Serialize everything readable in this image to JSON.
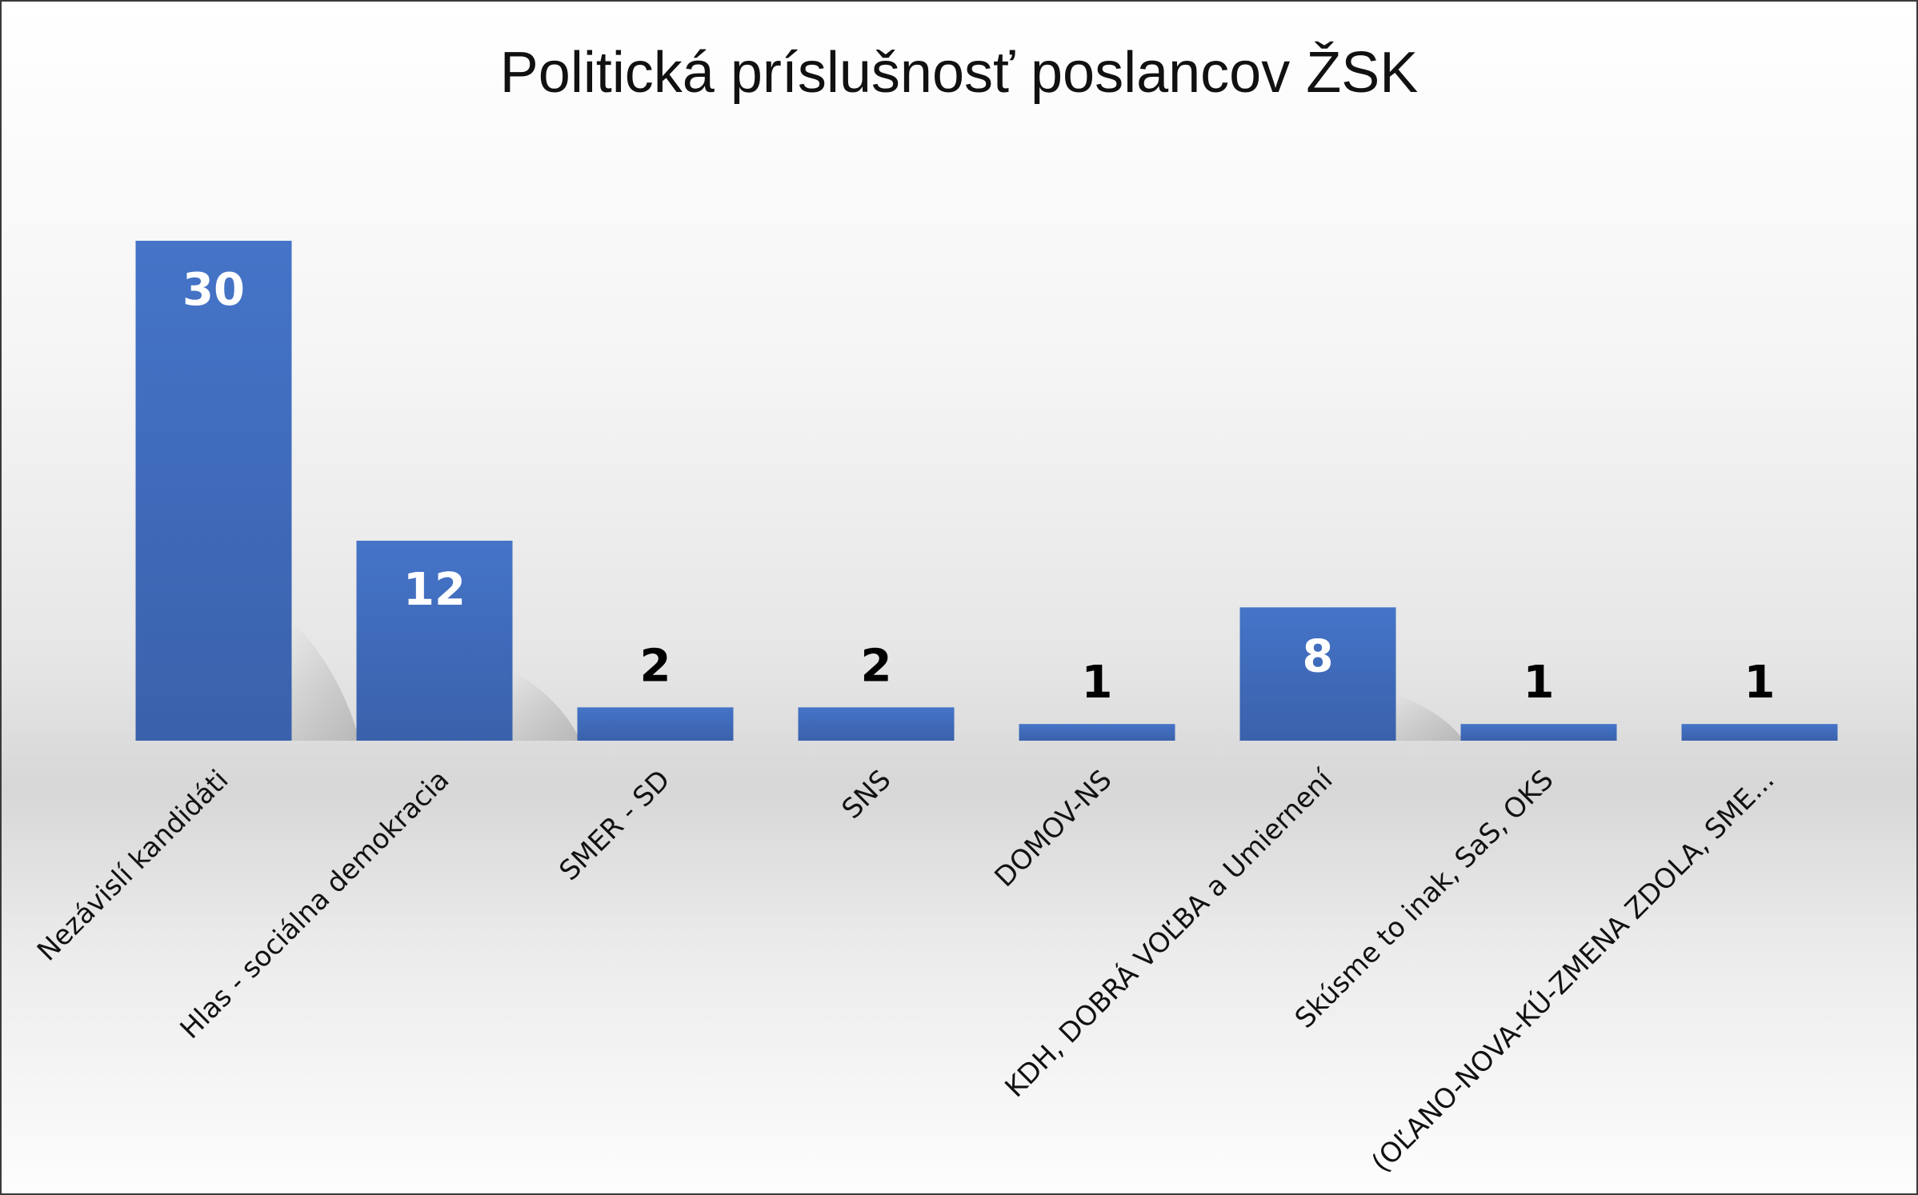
{
  "chart_data": {
    "type": "bar",
    "title": "Politická príslušnosť poslancov ŽSK",
    "xlabel": "",
    "ylabel": "",
    "ylim": [
      0,
      30
    ],
    "grid": false,
    "legend": "none",
    "categories": [
      "Nezávislí kandidáti",
      "Hlas - sociálna demokracia",
      "SMER - SD",
      "SNS",
      "DOMOV-NS",
      "KDH, DOBRÁ VOĽBA a Umiernení",
      "Skúsme to inak, SaS, OKS",
      "(OĽANO-NOVA-KÚ-ZMENA ZDOLA, SME..."
    ],
    "values": [
      30,
      12,
      2,
      2,
      1,
      8,
      1,
      1
    ],
    "data_labels": [
      "30",
      "12",
      "2",
      "2",
      "1",
      "8",
      "1",
      "1"
    ],
    "colors": {
      "bar": "#4472c4",
      "bar_dark": "#3a62ad",
      "label_inside": "#ffffff",
      "label_outside": "#000000"
    }
  }
}
